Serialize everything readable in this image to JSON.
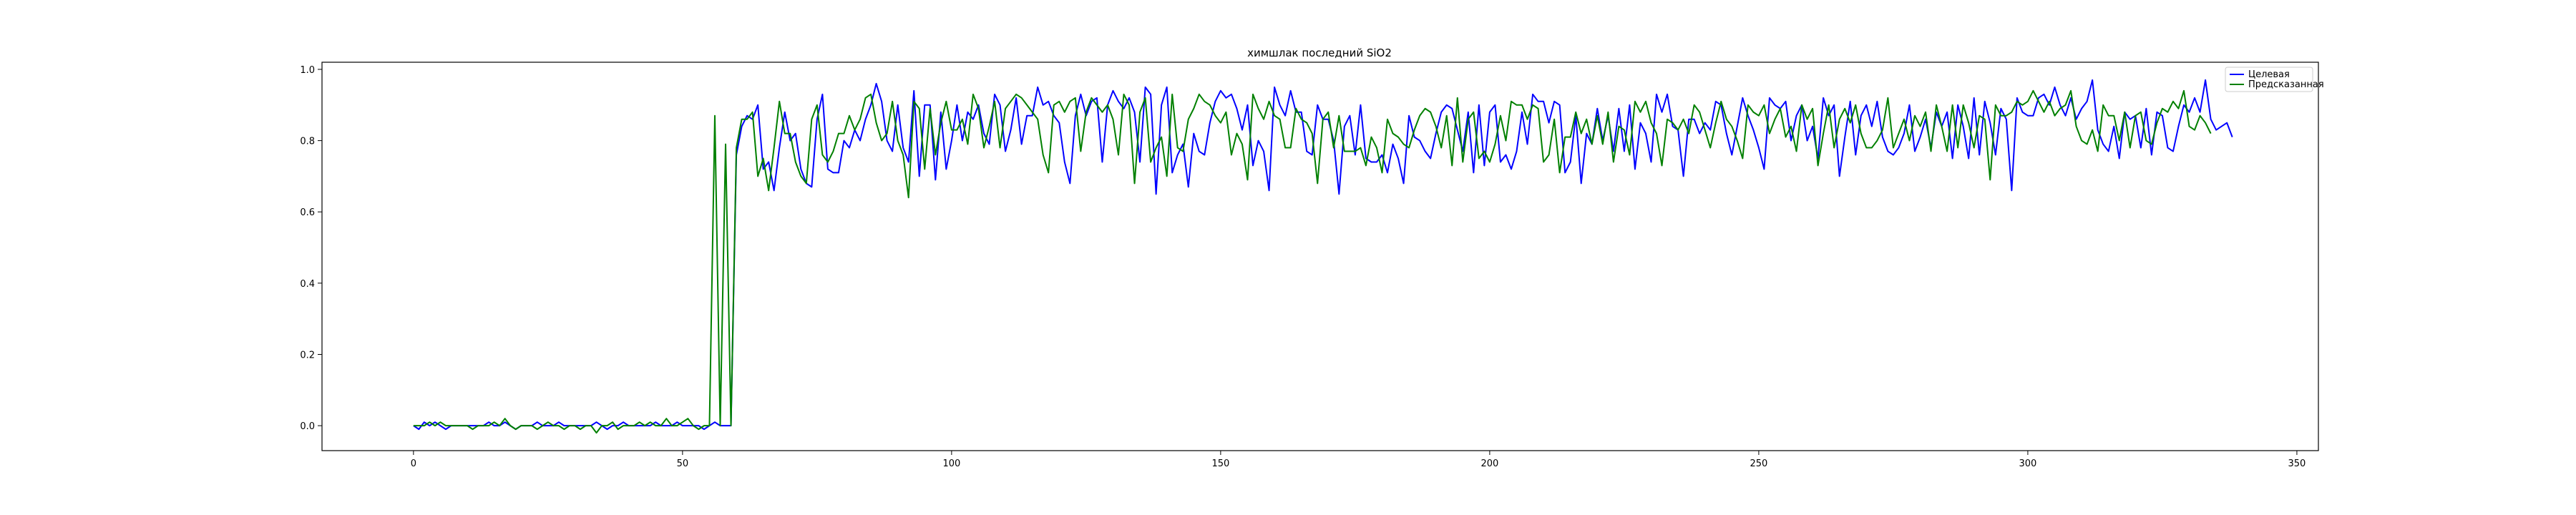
{
  "chart_data": {
    "type": "line",
    "title": "химшлак последний SiO2",
    "xlabel": "",
    "ylabel": "",
    "xlim": [
      -17,
      354
    ],
    "ylim": [
      -0.07,
      1.02
    ],
    "xticks": [
      0,
      50,
      100,
      150,
      200,
      250,
      300,
      350
    ],
    "yticks": [
      0.0,
      0.2,
      0.4,
      0.6,
      0.8,
      1.0
    ],
    "xtick_labels": [
      "0",
      "50",
      "100",
      "150",
      "200",
      "250",
      "300",
      "350"
    ],
    "ytick_labels": [
      "0.0",
      "0.2",
      "0.4",
      "0.6",
      "0.8",
      "1.0"
    ],
    "grid": false,
    "legend_position": "top-right",
    "colors": {
      "target": "#0000ff",
      "predicted": "#008000"
    },
    "x_start": 0,
    "series": [
      {
        "name": "Целевая",
        "values": [
          0.0,
          -0.01,
          0.01,
          0.0,
          0.01,
          0.0,
          -0.01,
          0.0,
          0.0,
          0.0,
          0.0,
          0.0,
          0.0,
          0.0,
          0.01,
          0.0,
          0.0,
          0.01,
          0.0,
          -0.01,
          0.0,
          0.0,
          0.0,
          0.01,
          0.0,
          0.0,
          0.0,
          0.01,
          0.0,
          0.0,
          0.0,
          0.0,
          0.0,
          0.0,
          0.01,
          0.0,
          -0.01,
          0.0,
          0.0,
          0.01,
          0.0,
          0.0,
          0.0,
          0.0,
          0.0,
          0.01,
          0.0,
          0.0,
          0.0,
          0.01,
          0.0,
          0.0,
          0.0,
          0.0,
          -0.01,
          0.0,
          0.01,
          0.0,
          0.0,
          0.0,
          0.76,
          0.84,
          0.87,
          0.86,
          0.9,
          0.72,
          0.74,
          0.66,
          0.78,
          0.88,
          0.8,
          0.82,
          0.72,
          0.68,
          0.67,
          0.86,
          0.93,
          0.72,
          0.71,
          0.71,
          0.8,
          0.78,
          0.83,
          0.8,
          0.86,
          0.9,
          0.96,
          0.91,
          0.8,
          0.77,
          0.9,
          0.78,
          0.74,
          0.94,
          0.7,
          0.9,
          0.9,
          0.69,
          0.88,
          0.72,
          0.8,
          0.9,
          0.8,
          0.88,
          0.86,
          0.9,
          0.82,
          0.79,
          0.93,
          0.9,
          0.77,
          0.83,
          0.92,
          0.79,
          0.87,
          0.87,
          0.95,
          0.9,
          0.91,
          0.87,
          0.85,
          0.74,
          0.68,
          0.87,
          0.93,
          0.87,
          0.91,
          0.92,
          0.74,
          0.9,
          0.94,
          0.91,
          0.89,
          0.92,
          0.88,
          0.74,
          0.95,
          0.93,
          0.65,
          0.9,
          0.95,
          0.71,
          0.76,
          0.79,
          0.67,
          0.82,
          0.77,
          0.76,
          0.85,
          0.91,
          0.94,
          0.92,
          0.93,
          0.89,
          0.83,
          0.9,
          0.73,
          0.8,
          0.77,
          0.66,
          0.95,
          0.9,
          0.87,
          0.94,
          0.88,
          0.88,
          0.77,
          0.76,
          0.9,
          0.86,
          0.86,
          0.8,
          0.65,
          0.84,
          0.87,
          0.76,
          0.9,
          0.75,
          0.74,
          0.74,
          0.76,
          0.71,
          0.79,
          0.75,
          0.68,
          0.87,
          0.81,
          0.8,
          0.77,
          0.75,
          0.82,
          0.88,
          0.9,
          0.89,
          0.83,
          0.77,
          0.88,
          0.71,
          0.9,
          0.73,
          0.88,
          0.9,
          0.74,
          0.76,
          0.72,
          0.77,
          0.88,
          0.79,
          0.93,
          0.91,
          0.91,
          0.85,
          0.91,
          0.9,
          0.71,
          0.74,
          0.87,
          0.68,
          0.82,
          0.79,
          0.89,
          0.8,
          0.87,
          0.77,
          0.89,
          0.77,
          0.9,
          0.72,
          0.85,
          0.82,
          0.74,
          0.93,
          0.88,
          0.93,
          0.84,
          0.83,
          0.7,
          0.86,
          0.86,
          0.82,
          0.85,
          0.83,
          0.91,
          0.9,
          0.82,
          0.76,
          0.84,
          0.92,
          0.87,
          0.83,
          0.78,
          0.72,
          0.92,
          0.9,
          0.89,
          0.91,
          0.8,
          0.87,
          0.9,
          0.8,
          0.84,
          0.75,
          0.92,
          0.87,
          0.9,
          0.7,
          0.81,
          0.91,
          0.76,
          0.87,
          0.9,
          0.84,
          0.91,
          0.81,
          0.77,
          0.76,
          0.78,
          0.82,
          0.9,
          0.77,
          0.81,
          0.86,
          0.78,
          0.88,
          0.84,
          0.88,
          0.75,
          0.9,
          0.84,
          0.75,
          0.92,
          0.76,
          0.91,
          0.85,
          0.76,
          0.89,
          0.86,
          0.66,
          0.92,
          0.88,
          0.87,
          0.87,
          0.92,
          0.93,
          0.9,
          0.95,
          0.9,
          0.87,
          0.92,
          0.86,
          0.89,
          0.91,
          0.97,
          0.83,
          0.79,
          0.77,
          0.84,
          0.75,
          0.88,
          0.86,
          0.87,
          0.78,
          0.89,
          0.76,
          0.88,
          0.87,
          0.78,
          0.77,
          0.84,
          0.9,
          0.88,
          0.92,
          0.88,
          0.97,
          0.86,
          0.83,
          0.84,
          0.85,
          0.81
        ],
        "color": "#0000ff"
      },
      {
        "name": "Предсказанная",
        "values": [
          0.0,
          0.0,
          0.0,
          0.01,
          0.0,
          0.01,
          0.0,
          0.0,
          0.0,
          0.0,
          0.0,
          -0.01,
          0.0,
          0.0,
          0.0,
          0.01,
          0.0,
          0.02,
          0.0,
          -0.01,
          0.0,
          0.0,
          0.0,
          -0.01,
          0.0,
          0.01,
          0.0,
          0.0,
          -0.01,
          0.0,
          0.0,
          -0.01,
          0.0,
          0.0,
          -0.02,
          0.0,
          0.0,
          0.01,
          -0.01,
          0.0,
          0.0,
          0.0,
          0.01,
          0.0,
          0.01,
          0.0,
          0.0,
          0.02,
          0.0,
          0.0,
          0.01,
          0.02,
          0.0,
          -0.01,
          0.0,
          0.0,
          0.87,
          0.0,
          0.79,
          0.0,
          0.78,
          0.86,
          0.86,
          0.88,
          0.7,
          0.75,
          0.66,
          0.78,
          0.91,
          0.82,
          0.82,
          0.74,
          0.7,
          0.68,
          0.86,
          0.9,
          0.76,
          0.74,
          0.77,
          0.82,
          0.82,
          0.87,
          0.83,
          0.86,
          0.92,
          0.93,
          0.85,
          0.8,
          0.82,
          0.91,
          0.8,
          0.76,
          0.64,
          0.91,
          0.89,
          0.72,
          0.89,
          0.76,
          0.85,
          0.91,
          0.83,
          0.83,
          0.86,
          0.79,
          0.93,
          0.89,
          0.78,
          0.84,
          0.91,
          0.78,
          0.89,
          0.91,
          0.93,
          0.92,
          0.9,
          0.88,
          0.86,
          0.76,
          0.71,
          0.9,
          0.91,
          0.88,
          0.91,
          0.92,
          0.77,
          0.88,
          0.92,
          0.9,
          0.88,
          0.9,
          0.86,
          0.76,
          0.93,
          0.9,
          0.68,
          0.88,
          0.92,
          0.74,
          0.78,
          0.81,
          0.7,
          0.93,
          0.78,
          0.77,
          0.86,
          0.89,
          0.93,
          0.91,
          0.9,
          0.87,
          0.85,
          0.88,
          0.76,
          0.82,
          0.79,
          0.69,
          0.93,
          0.89,
          0.86,
          0.91,
          0.87,
          0.86,
          0.78,
          0.78,
          0.89,
          0.86,
          0.85,
          0.82,
          0.68,
          0.86,
          0.88,
          0.78,
          0.87,
          0.77,
          0.77,
          0.77,
          0.78,
          0.73,
          0.81,
          0.78,
          0.71,
          0.86,
          0.82,
          0.81,
          0.79,
          0.78,
          0.83,
          0.87,
          0.89,
          0.88,
          0.84,
          0.78,
          0.87,
          0.73,
          0.92,
          0.74,
          0.86,
          0.88,
          0.75,
          0.77,
          0.74,
          0.79,
          0.87,
          0.8,
          0.91,
          0.9,
          0.9,
          0.86,
          0.9,
          0.89,
          0.74,
          0.76,
          0.86,
          0.71,
          0.81,
          0.81,
          0.88,
          0.82,
          0.86,
          0.79,
          0.87,
          0.79,
          0.88,
          0.74,
          0.84,
          0.83,
          0.76,
          0.91,
          0.88,
          0.91,
          0.85,
          0.82,
          0.73,
          0.86,
          0.85,
          0.83,
          0.86,
          0.82,
          0.9,
          0.88,
          0.83,
          0.78,
          0.85,
          0.91,
          0.86,
          0.84,
          0.8,
          0.75,
          0.9,
          0.88,
          0.87,
          0.9,
          0.82,
          0.86,
          0.89,
          0.81,
          0.84,
          0.77,
          0.9,
          0.86,
          0.89,
          0.73,
          0.82,
          0.9,
          0.78,
          0.86,
          0.89,
          0.85,
          0.9,
          0.82,
          0.78,
          0.78,
          0.8,
          0.83,
          0.92,
          0.78,
          0.82,
          0.86,
          0.8,
          0.87,
          0.84,
          0.88,
          0.77,
          0.9,
          0.84,
          0.77,
          0.9,
          0.78,
          0.9,
          0.85,
          0.78,
          0.87,
          0.86,
          0.69,
          0.9,
          0.87,
          0.87,
          0.88,
          0.91,
          0.9,
          0.91,
          0.94,
          0.91,
          0.88,
          0.91,
          0.87,
          0.89,
          0.9,
          0.94,
          0.84,
          0.8,
          0.79,
          0.83,
          0.77,
          0.9,
          0.87,
          0.87,
          0.8,
          0.88,
          0.78,
          0.87,
          0.88,
          0.8,
          0.79,
          0.85,
          0.89,
          0.88,
          0.91,
          0.89,
          0.94,
          0.84,
          0.83,
          0.87,
          0.85,
          0.82
        ],
        "color": "#008000"
      }
    ]
  }
}
